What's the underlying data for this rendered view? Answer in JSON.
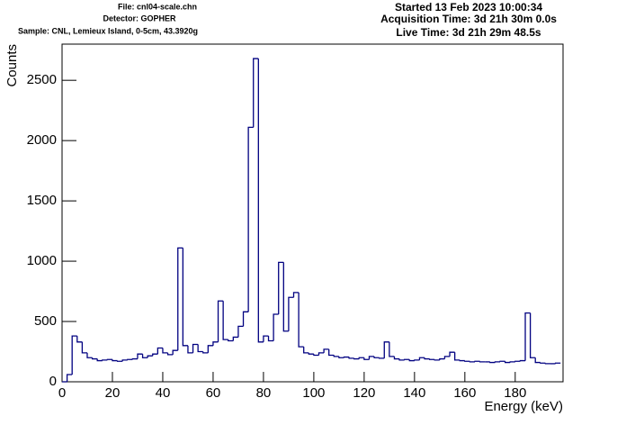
{
  "chart_data": {
    "type": "histogram",
    "annotations": [
      "File: cnl04-scale.chn",
      "Detector: GOPHER",
      "Sample: CNL, Lemieux Island, 0-5cm, 43.3920g",
      "Started 13 Feb 2023 10:00:34",
      "Acquisition Time: 3d 21h 30m 0.0s",
      "Live Time: 3d 21h 29m 48.5s"
    ],
    "xlabel": "Energy (keV)",
    "ylabel": "Counts",
    "color": "#000080",
    "bins": [
      0,
      2,
      4,
      6,
      8,
      10,
      12,
      14,
      16,
      18,
      20,
      22,
      24,
      26,
      28,
      30,
      32,
      34,
      36,
      38,
      40,
      42,
      44,
      46,
      48,
      50,
      52,
      54,
      56,
      58,
      60,
      62,
      64,
      66,
      68,
      70,
      72,
      74,
      76,
      78,
      80,
      82,
      84,
      86,
      88,
      90,
      92,
      94,
      96,
      98,
      100,
      102,
      104,
      106,
      108,
      110,
      112,
      114,
      116,
      118,
      120,
      122,
      124,
      126,
      128,
      130,
      132,
      134,
      136,
      138,
      140,
      142,
      144,
      146,
      148,
      150,
      152,
      154,
      156,
      158,
      160,
      162,
      164,
      166,
      168,
      170,
      172,
      174,
      176,
      178,
      180,
      182,
      184,
      186,
      188,
      190,
      192,
      194,
      196,
      198
    ],
    "values": [
      0,
      60,
      380,
      330,
      240,
      200,
      190,
      175,
      180,
      185,
      175,
      170,
      180,
      185,
      190,
      230,
      200,
      215,
      230,
      280,
      240,
      225,
      260,
      1110,
      300,
      240,
      310,
      250,
      240,
      300,
      330,
      670,
      350,
      340,
      370,
      460,
      580,
      2110,
      2680,
      330,
      380,
      340,
      560,
      990,
      420,
      700,
      740,
      290,
      240,
      230,
      220,
      240,
      270,
      220,
      210,
      200,
      205,
      195,
      190,
      200,
      185,
      210,
      200,
      195,
      330,
      210,
      190,
      180,
      185,
      175,
      180,
      200,
      190,
      185,
      180,
      190,
      210,
      245,
      180,
      175,
      170,
      165,
      170,
      165,
      165,
      160,
      165,
      170,
      160,
      165,
      170,
      175,
      570,
      200,
      160,
      155,
      150,
      150,
      155
    ],
    "xlim": [
      0,
      199
    ],
    "ylim": [
      0,
      2800
    ],
    "xticks": [
      0,
      20,
      40,
      60,
      80,
      100,
      120,
      140,
      160,
      180
    ],
    "yticks": [
      0,
      500,
      1000,
      1500,
      2000,
      2500
    ]
  }
}
